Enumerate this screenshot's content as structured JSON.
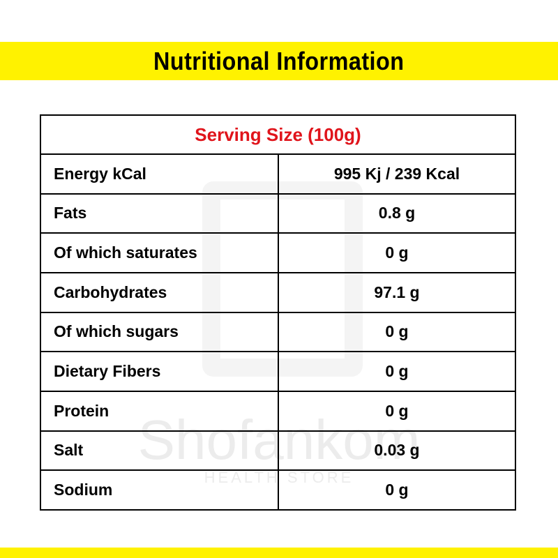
{
  "header": {
    "title": "Nutritional Information"
  },
  "table": {
    "caption": "Serving Size (100g)",
    "rows": [
      [
        "Energy kCal",
        "995 Kj / 239 Kcal"
      ],
      [
        "Fats",
        "0.8 g"
      ],
      [
        "Of which saturates",
        "0 g"
      ],
      [
        "Carbohydrates",
        "97.1 g"
      ],
      [
        "Of which sugars",
        "0 g"
      ],
      [
        "Dietary Fibers",
        "0 g"
      ],
      [
        "Protein",
        "0 g"
      ],
      [
        "Salt",
        "0.03 g"
      ],
      [
        "Sodium",
        "0 g"
      ]
    ]
  },
  "watermark": {
    "brand": "Shofankom",
    "tagline": "HEALTH STORE"
  }
}
